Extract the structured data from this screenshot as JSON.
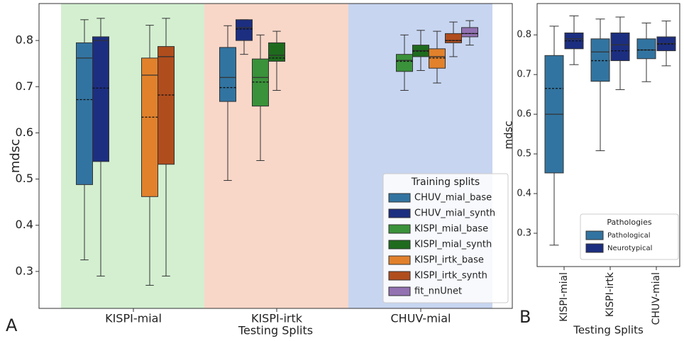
{
  "chart_data": [
    {
      "type": "box",
      "panel": "A",
      "ylabel": "mdsc",
      "xlabel": "Testing Splits",
      "categories": [
        "KISPI-mial",
        "KISPI-irtk",
        "CHUV-mial"
      ],
      "ylim": [
        0.22,
        0.88
      ],
      "yticks": [
        0.3,
        0.4,
        0.5,
        0.6,
        0.7,
        0.8
      ],
      "legend_title": "Training splits",
      "legend": "lower right",
      "series": [
        {
          "name": "CHUV_mial_base",
          "color": "#3274a1",
          "low": [
            0.325,
            0.497,
            null
          ],
          "q1": [
            0.488,
            0.668,
            null
          ],
          "median": [
            0.762,
            0.72,
            null
          ],
          "mean": [
            0.672,
            0.698,
            null
          ],
          "q3": [
            0.795,
            0.785,
            null
          ],
          "high": [
            0.845,
            0.832,
            null
          ]
        },
        {
          "name": "CHUV_mial_synth",
          "color": "#1c2e80",
          "low": [
            0.29,
            0.77,
            null
          ],
          "q1": [
            0.538,
            0.8,
            null
          ],
          "median": [
            0.8,
            0.828,
            null
          ],
          "mean": [
            0.697,
            0.825,
            null
          ],
          "q3": [
            0.808,
            0.845,
            null
          ],
          "high": [
            0.848,
            0.845,
            null
          ]
        },
        {
          "name": "KISPI_mial_base",
          "color": "#3a923a",
          "low": [
            null,
            0.54,
            0.692
          ],
          "q1": [
            null,
            0.658,
            0.733
          ],
          "median": [
            null,
            0.72,
            0.757
          ],
          "mean": [
            null,
            0.71,
            0.755
          ],
          "q3": [
            null,
            0.76,
            0.77
          ],
          "high": [
            null,
            0.812,
            0.812
          ]
        },
        {
          "name": "KISPI_mial_synth",
          "color": "#1e6b1e",
          "low": [
            null,
            0.692,
            0.735
          ],
          "q1": [
            null,
            0.755,
            0.765
          ],
          "median": [
            null,
            0.768,
            0.778
          ],
          "mean": [
            null,
            0.762,
            0.777
          ],
          "q3": [
            null,
            0.795,
            0.79
          ],
          "high": [
            null,
            0.82,
            0.822
          ]
        },
        {
          "name": "KISPI_irtk_base",
          "color": "#e1812c",
          "low": [
            0.27,
            null,
            0.708
          ],
          "q1": [
            0.462,
            null,
            0.74
          ],
          "median": [
            0.725,
            null,
            0.765
          ],
          "mean": [
            0.634,
            null,
            0.762
          ],
          "q3": [
            0.762,
            null,
            0.782
          ],
          "high": [
            0.833,
            null,
            0.82
          ]
        },
        {
          "name": "KISPI_irtk_synth",
          "color": "#b04d1d",
          "low": [
            0.29,
            null,
            0.765
          ],
          "q1": [
            0.532,
            null,
            0.795
          ],
          "median": [
            0.765,
            null,
            0.8
          ],
          "mean": [
            0.682,
            null,
            0.8
          ],
          "q3": [
            0.787,
            null,
            0.815
          ],
          "high": [
            0.848,
            null,
            0.84
          ]
        },
        {
          "name": "fit_nnUnet",
          "color": "#9372b2",
          "low": [
            null,
            null,
            0.79
          ],
          "q1": [
            null,
            null,
            0.808
          ],
          "median": [
            null,
            null,
            0.815
          ],
          "mean": [
            null,
            null,
            0.815
          ],
          "q3": [
            null,
            null,
            0.828
          ],
          "high": [
            null,
            null,
            0.843
          ]
        }
      ]
    },
    {
      "type": "box",
      "panel": "B",
      "ylabel": "mdsc",
      "xlabel": "Testing Splits",
      "categories": [
        "KISPI-mial",
        "KISPI-irtk",
        "CHUV-mial"
      ],
      "ylim": [
        0.216,
        0.879
      ],
      "yticks": [
        0.3,
        0.4,
        0.5,
        0.6,
        0.7,
        0.8
      ],
      "legend_title": "Pathologies",
      "legend": "lower right",
      "series": [
        {
          "name": "Pathological",
          "color": "#3274a1",
          "low": [
            0.27,
            0.508,
            0.682
          ],
          "q1": [
            0.452,
            0.683,
            0.74
          ],
          "median": [
            0.6,
            0.757,
            0.762
          ],
          "mean": [
            0.665,
            0.735,
            0.762
          ],
          "q3": [
            0.748,
            0.79,
            0.79
          ],
          "high": [
            0.822,
            0.84,
            0.83
          ]
        },
        {
          "name": "Neurotypical",
          "color": "#1c2e80",
          "low": [
            0.725,
            0.662,
            0.722
          ],
          "q1": [
            0.765,
            0.735,
            0.76
          ],
          "median": [
            0.79,
            0.775,
            0.778
          ],
          "mean": [
            0.785,
            0.76,
            0.777
          ],
          "q3": [
            0.805,
            0.805,
            0.795
          ],
          "high": [
            0.848,
            0.845,
            0.835
          ]
        }
      ]
    }
  ]
}
